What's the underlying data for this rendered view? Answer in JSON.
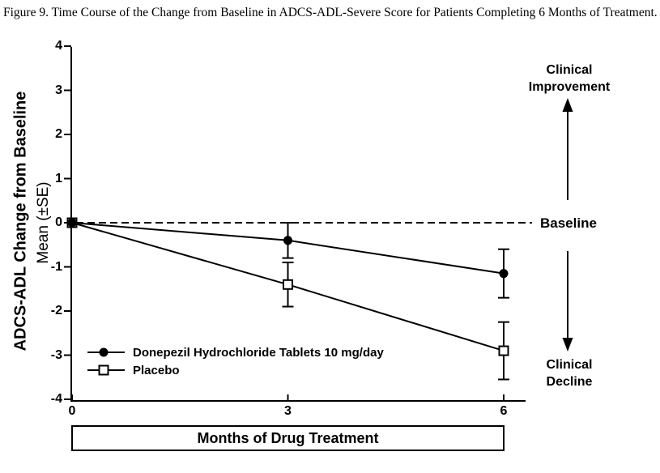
{
  "figure_title": "Figure 9. Time Course of the Change from Baseline in ADCS-ADL-Severe Score for Patients Completing 6 Months of Treatment.",
  "chart_data": {
    "type": "line",
    "x": [
      0,
      3,
      6
    ],
    "x_tick_labels": [
      "0",
      "3",
      "6"
    ],
    "y_ticks": [
      4,
      3,
      2,
      1,
      0,
      -1,
      -2,
      -3,
      -4
    ],
    "y_tick_labels": [
      "4",
      "3",
      "2",
      "1",
      "0",
      "-1",
      "-2",
      "-3",
      "-4"
    ],
    "ylim": [
      -4,
      4
    ],
    "xlabel": "Months of Drug Treatment",
    "ylabel_line1": "ADCS-ADL Change from Baseline",
    "ylabel_line2": "Mean (±SE)",
    "grid": false,
    "legend_position": "inside-bottom-left",
    "series": [
      {
        "name": "Donepezil Hydrochloride Tablets 10 mg/day",
        "marker": "filled-circle",
        "values": [
          0,
          -0.4,
          -1.15
        ],
        "se": [
          0,
          0.4,
          0.55
        ]
      },
      {
        "name": "Placebo",
        "marker": "open-square",
        "values": [
          0,
          -1.4,
          -2.9
        ],
        "se": [
          0,
          0.5,
          0.65
        ]
      }
    ],
    "baseline": {
      "value": 0,
      "label": "Baseline",
      "line_style": "dashed"
    },
    "annotations": {
      "improvement_line1": "Clinical",
      "improvement_line2": "Improvement",
      "decline_line1": "Clinical",
      "decline_line2": "Decline"
    },
    "colors": {
      "foreground": "#000000",
      "background": "#ffffff"
    }
  }
}
